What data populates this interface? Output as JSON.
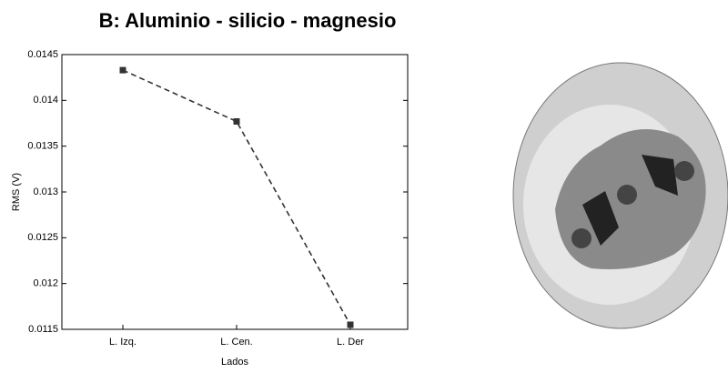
{
  "chart_data": {
    "type": "line",
    "title": "B: Aluminio - silicio - magnesio",
    "x_label": "Lados",
    "y_label": "RMS (V)",
    "categories": [
      "L. Izq.",
      "L. Cen.",
      "L. Der"
    ],
    "series": [
      {
        "name": "RMS",
        "color": "#333333",
        "values": [
          0.01433,
          0.01377,
          0.01155
        ]
      }
    ],
    "ylim": [
      0.0115,
      0.0145
    ],
    "yticks": [
      0.0115,
      0.012,
      0.0125,
      0.013,
      0.0135,
      0.014,
      0.0145
    ]
  }
}
